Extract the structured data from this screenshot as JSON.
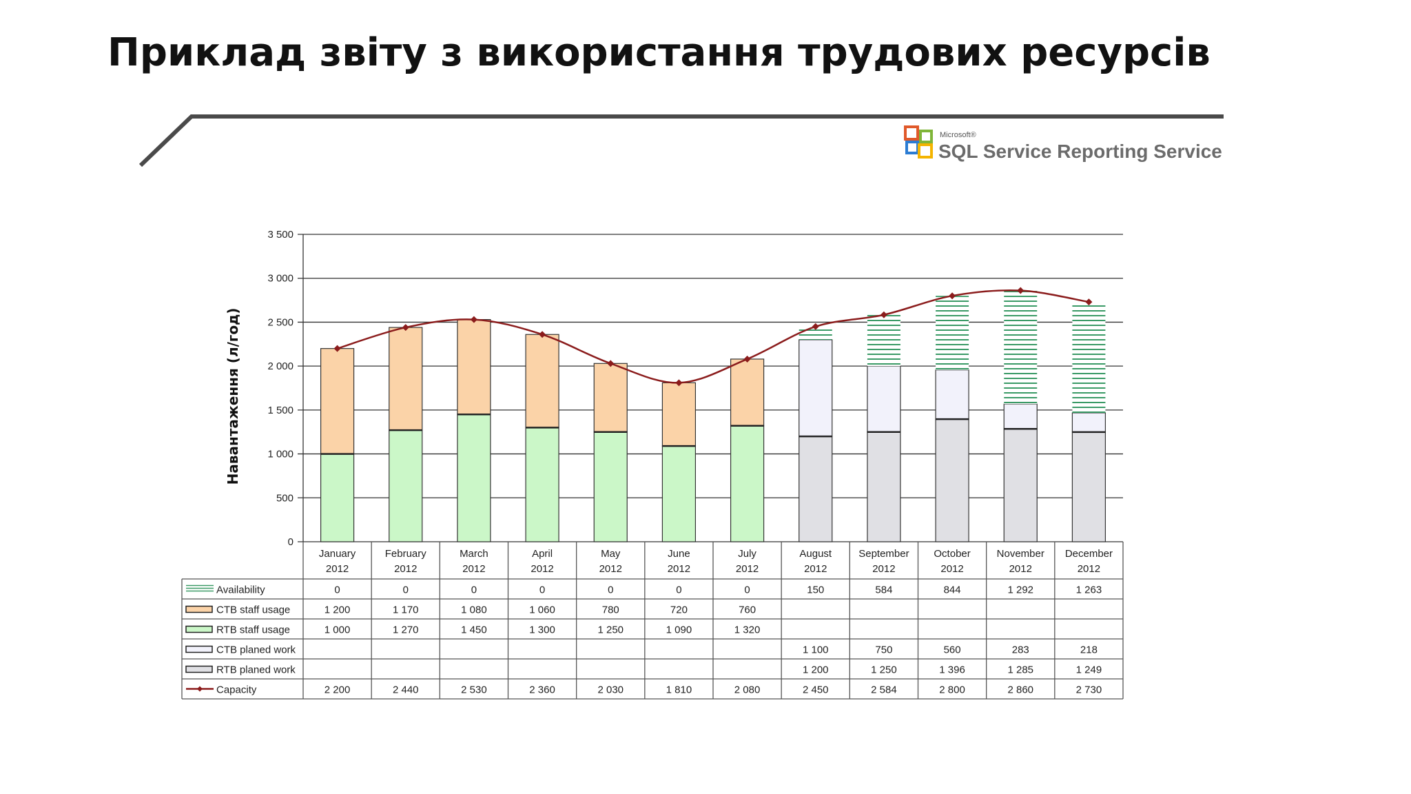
{
  "slide": {
    "title": "Приклад звіту з використання трудових ресурсів"
  },
  "logo": {
    "small_text": "Microsoft®",
    "text": "SQL Service Reporting Service"
  },
  "colors": {
    "availability": "#3a9a66",
    "ctb_staff_usage": "#fbd3a8",
    "rtb_staff_usage": "#cbf7c8",
    "ctb_planed_work": "#f2f2fb",
    "rtb_planed_work": "#e0e0e4",
    "capacity": "#8b1c1c",
    "grid": "#333333",
    "rule": "#4a4a4a"
  },
  "chart_data": {
    "type": "bar",
    "stacked": true,
    "ylabel": "Навантаження (л/год)",
    "ylim": [
      0,
      3500
    ],
    "yticks": [
      0,
      500,
      1000,
      1500,
      2000,
      2500,
      3000,
      3500
    ],
    "ytick_labels": [
      "0",
      "500",
      "1 000",
      "1 500",
      "2 000",
      "2 500",
      "3 000",
      "3 500"
    ],
    "grid": true,
    "legend": "data-table-below",
    "categories": [
      [
        "January",
        "2012"
      ],
      [
        "February",
        "2012"
      ],
      [
        "March",
        "2012"
      ],
      [
        "April",
        "2012"
      ],
      [
        "May",
        "2012"
      ],
      [
        "June",
        "2012"
      ],
      [
        "July",
        "2012"
      ],
      [
        "August",
        "2012"
      ],
      [
        "September",
        "2012"
      ],
      [
        "October",
        "2012"
      ],
      [
        "November",
        "2012"
      ],
      [
        "December",
        "2012"
      ]
    ],
    "series": [
      {
        "name": "Availability",
        "kind": "hatched-bar",
        "values": [
          0,
          0,
          0,
          0,
          0,
          0,
          0,
          150,
          584,
          844,
          1292,
          1263
        ],
        "labels": [
          "0",
          "0",
          "0",
          "0",
          "0",
          "0",
          "0",
          "150",
          "584",
          "844",
          "1 292",
          "1 263"
        ]
      },
      {
        "name": "CTB staff usage",
        "kind": "bar",
        "values": [
          1200,
          1170,
          1080,
          1060,
          780,
          720,
          760,
          null,
          null,
          null,
          null,
          null
        ],
        "labels": [
          "1 200",
          "1 170",
          "1 080",
          "1 060",
          "780",
          "720",
          "760",
          "",
          "",
          "",
          "",
          ""
        ]
      },
      {
        "name": "RTB staff usage",
        "kind": "bar",
        "values": [
          1000,
          1270,
          1450,
          1300,
          1250,
          1090,
          1320,
          null,
          null,
          null,
          null,
          null
        ],
        "labels": [
          "1 000",
          "1 270",
          "1 450",
          "1 300",
          "1 250",
          "1 090",
          "1 320",
          "",
          "",
          "",
          "",
          ""
        ]
      },
      {
        "name": "CTB planed work",
        "kind": "bar",
        "values": [
          null,
          null,
          null,
          null,
          null,
          null,
          null,
          1100,
          750,
          560,
          283,
          218
        ],
        "labels": [
          "",
          "",
          "",
          "",
          "",
          "",
          "",
          "1 100",
          "750",
          "560",
          "283",
          "218"
        ]
      },
      {
        "name": "RTB planed work",
        "kind": "bar",
        "values": [
          null,
          null,
          null,
          null,
          null,
          null,
          null,
          1200,
          1250,
          1396,
          1285,
          1249
        ],
        "labels": [
          "",
          "",
          "",
          "",
          "",
          "",
          "",
          "1 200",
          "1 250",
          "1 396",
          "1 285",
          "1 249"
        ]
      },
      {
        "name": "Capacity",
        "kind": "line",
        "values": [
          2200,
          2440,
          2530,
          2360,
          2030,
          1810,
          2080,
          2450,
          2584,
          2800,
          2860,
          2730
        ],
        "labels": [
          "2 200",
          "2 440",
          "2 530",
          "2 360",
          "2 030",
          "1 810",
          "2 080",
          "2 450",
          "2 584",
          "2 800",
          "2 860",
          "2 730"
        ]
      }
    ]
  }
}
